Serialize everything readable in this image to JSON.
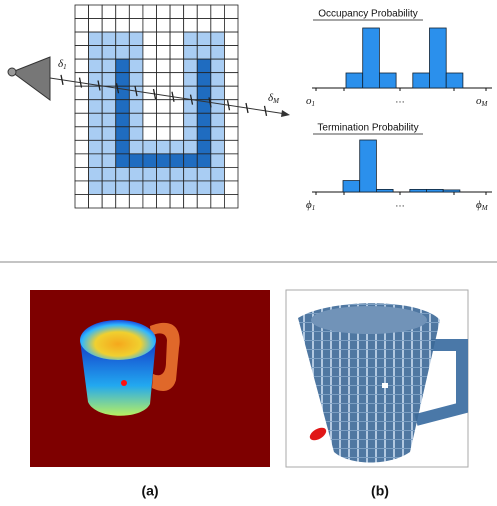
{
  "diagram": {
    "ray_start": {
      "base": "δ",
      "sub": "1"
    },
    "ray_end": {
      "base": "δ",
      "sub": "M"
    }
  },
  "occupancy": {
    "title": "Occupancy Probability",
    "values": [
      0.25,
      1,
      0.25,
      0,
      0.25,
      1,
      0.25
    ],
    "first": {
      "base": "o",
      "sub": "1"
    },
    "ellipsis": "…",
    "last": {
      "base": "o",
      "sub": "M"
    }
  },
  "termination": {
    "title": "Termination Probability",
    "values": [
      0.22,
      1,
      0.05,
      0,
      0.05,
      0.05,
      0.04
    ],
    "first": {
      "base": "ϕ",
      "sub": "1"
    },
    "ellipsis": "…",
    "last": {
      "base": "ϕ",
      "sub": "M"
    }
  },
  "panels": [
    {
      "label": "(a)"
    },
    {
      "label": "(b)"
    }
  ]
}
